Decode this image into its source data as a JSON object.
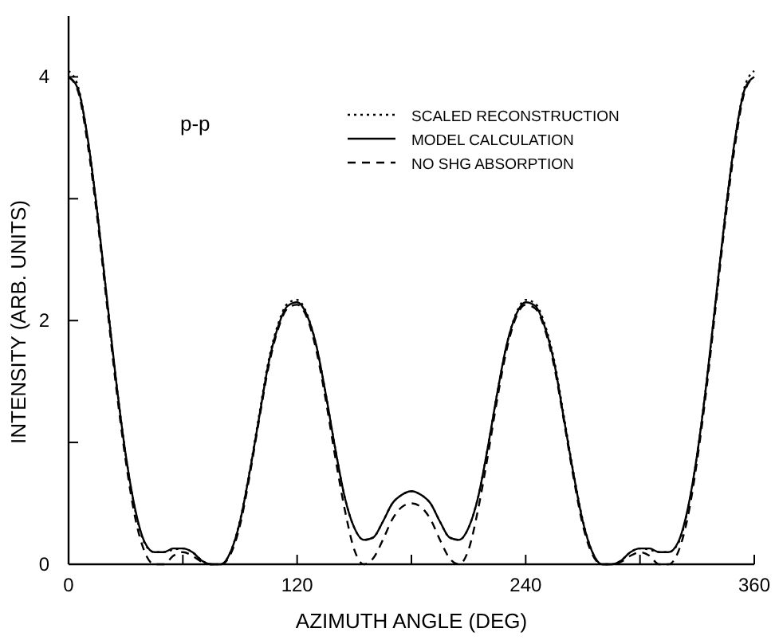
{
  "chart_data": {
    "type": "line",
    "xlabel": "AZIMUTH ANGLE (DEG)",
    "ylabel": "INTENSITY (ARB. UNITS)",
    "annotations": [
      "p-p"
    ],
    "x": [
      0,
      5,
      10,
      15,
      20,
      25,
      30,
      35,
      40,
      45,
      50,
      55,
      60,
      65,
      70,
      75,
      80,
      85,
      90,
      95,
      100,
      105,
      110,
      115,
      120,
      125,
      130,
      135,
      140,
      145,
      150,
      155,
      160,
      165,
      170,
      175,
      180,
      185,
      190,
      195,
      200,
      205,
      210,
      215,
      220,
      225,
      230,
      235,
      240,
      245,
      250,
      255,
      260,
      265,
      270,
      275,
      280,
      285,
      290,
      295,
      300,
      305,
      310,
      315,
      320,
      325,
      330,
      335,
      340,
      345,
      350,
      355,
      360
    ],
    "series": [
      {
        "name": "SCALED RECONSTRUCTION",
        "color": "#000000",
        "line_style": "dotted",
        "values": [
          4.05,
          3.92,
          3.5,
          2.9,
          2.2,
          1.5,
          0.9,
          0.44,
          0.17,
          0.1,
          0.1,
          0.12,
          0.13,
          0.1,
          0.03,
          0,
          0,
          0.1,
          0.36,
          0.76,
          1.22,
          1.67,
          1.97,
          2.14,
          2.17,
          2.06,
          1.8,
          1.4,
          0.95,
          0.55,
          0.3,
          0.2,
          0.22,
          0.35,
          0.5,
          0.57,
          0.6,
          0.57,
          0.5,
          0.35,
          0.22,
          0.2,
          0.3,
          0.55,
          0.95,
          1.4,
          1.8,
          2.06,
          2.17,
          2.14,
          1.97,
          1.67,
          1.22,
          0.76,
          0.36,
          0.1,
          0,
          0,
          0.03,
          0.1,
          0.13,
          0.12,
          0.1,
          0.1,
          0.17,
          0.44,
          0.9,
          1.5,
          2.2,
          2.9,
          3.5,
          3.92,
          4.05
        ]
      },
      {
        "name": "MODEL CALCULATION",
        "color": "#000000",
        "line_style": "solid",
        "values": [
          4.0,
          3.9,
          3.5,
          2.9,
          2.2,
          1.5,
          0.9,
          0.45,
          0.18,
          0.1,
          0.1,
          0.13,
          0.13,
          0.1,
          0.03,
          0,
          0,
          0.1,
          0.35,
          0.75,
          1.2,
          1.65,
          1.95,
          2.12,
          2.15,
          2.05,
          1.8,
          1.4,
          0.95,
          0.55,
          0.3,
          0.2,
          0.22,
          0.35,
          0.5,
          0.57,
          0.6,
          0.57,
          0.5,
          0.35,
          0.22,
          0.2,
          0.3,
          0.55,
          0.95,
          1.4,
          1.8,
          2.05,
          2.15,
          2.12,
          1.95,
          1.65,
          1.2,
          0.75,
          0.35,
          0.1,
          0,
          0,
          0.03,
          0.1,
          0.13,
          0.13,
          0.1,
          0.1,
          0.18,
          0.45,
          0.9,
          1.5,
          2.2,
          2.9,
          3.5,
          3.9,
          4.0
        ]
      },
      {
        "name": "NO SHG ABSORPTION",
        "color": "#000000",
        "line_style": "dashed",
        "values": [
          4.0,
          3.88,
          3.45,
          2.85,
          2.15,
          1.45,
          0.85,
          0.38,
          0.1,
          0,
          0,
          0.07,
          0.1,
          0.07,
          0.02,
          0,
          0,
          0.08,
          0.32,
          0.72,
          1.18,
          1.62,
          1.93,
          2.1,
          2.13,
          2.03,
          1.76,
          1.35,
          0.88,
          0.45,
          0.12,
          0,
          0.05,
          0.2,
          0.37,
          0.47,
          0.5,
          0.47,
          0.37,
          0.2,
          0.05,
          0,
          0.12,
          0.45,
          0.88,
          1.35,
          1.76,
          2.03,
          2.13,
          2.1,
          1.93,
          1.62,
          1.18,
          0.72,
          0.32,
          0.08,
          0,
          0,
          0.02,
          0.07,
          0.1,
          0.07,
          0,
          0,
          0.1,
          0.38,
          0.85,
          1.45,
          2.15,
          2.85,
          3.45,
          3.88,
          4.0
        ]
      }
    ],
    "xlim": [
      0,
      360
    ],
    "xticks": [
      0,
      {
        "value": 60,
        "label": null
      },
      120,
      {
        "value": 180,
        "label": null
      },
      240,
      {
        "value": 300,
        "label": null
      },
      360
    ],
    "ylim": [
      0,
      4.5
    ],
    "yticks": [
      0,
      {
        "value": 1,
        "label": null
      },
      2,
      {
        "value": 3,
        "label": null
      },
      4
    ],
    "legend": "top right",
    "grid": false
  }
}
